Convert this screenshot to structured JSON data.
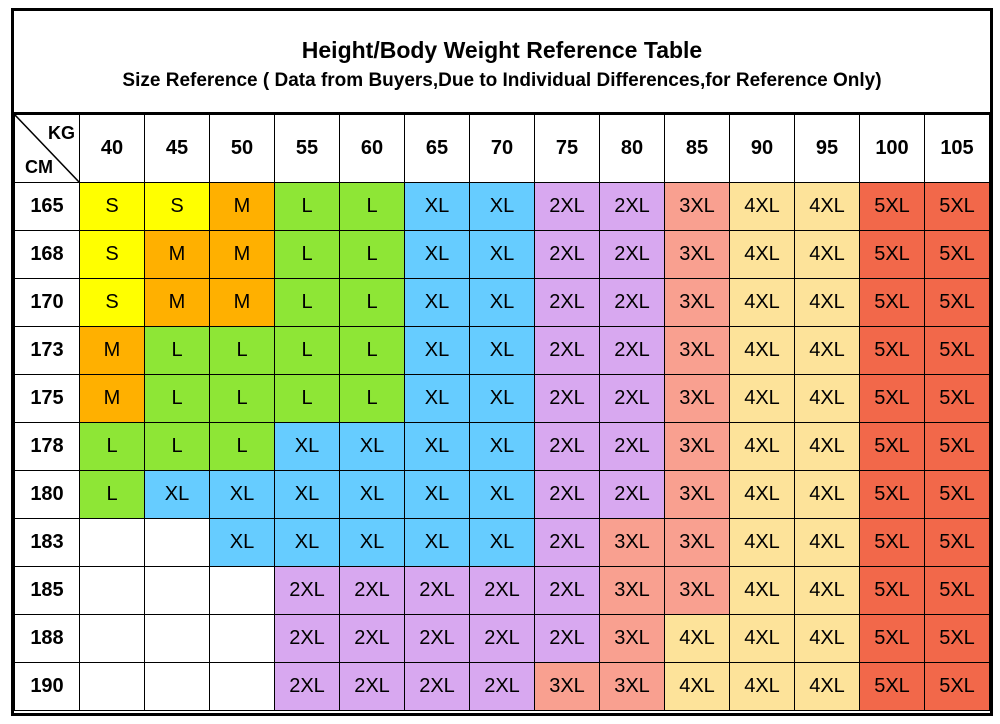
{
  "header": {
    "title": "Height/Body Weight Reference Table",
    "subtitle": "Size Reference ( Data from Buyers,Due to Individual Differences,for Reference Only)"
  },
  "table": {
    "corner_top": "KG",
    "corner_bottom": "CM",
    "columns": [
      "40",
      "45",
      "50",
      "55",
      "60",
      "65",
      "70",
      "75",
      "80",
      "85",
      "90",
      "95",
      "100",
      "105"
    ],
    "rows": [
      {
        "height": "165",
        "sizes": [
          "S",
          "S",
          "M",
          "L",
          "L",
          "XL",
          "XL",
          "2XL",
          "2XL",
          "3XL",
          "4XL",
          "4XL",
          "5XL",
          "5XL"
        ]
      },
      {
        "height": "168",
        "sizes": [
          "S",
          "M",
          "M",
          "L",
          "L",
          "XL",
          "XL",
          "2XL",
          "2XL",
          "3XL",
          "4XL",
          "4XL",
          "5XL",
          "5XL"
        ]
      },
      {
        "height": "170",
        "sizes": [
          "S",
          "M",
          "M",
          "L",
          "L",
          "XL",
          "XL",
          "2XL",
          "2XL",
          "3XL",
          "4XL",
          "4XL",
          "5XL",
          "5XL"
        ]
      },
      {
        "height": "173",
        "sizes": [
          "M",
          "L",
          "L",
          "L",
          "L",
          "XL",
          "XL",
          "2XL",
          "2XL",
          "3XL",
          "4XL",
          "4XL",
          "5XL",
          "5XL"
        ]
      },
      {
        "height": "175",
        "sizes": [
          "M",
          "L",
          "L",
          "L",
          "L",
          "XL",
          "XL",
          "2XL",
          "2XL",
          "3XL",
          "4XL",
          "4XL",
          "5XL",
          "5XL"
        ]
      },
      {
        "height": "178",
        "sizes": [
          "L",
          "L",
          "L",
          "XL",
          "XL",
          "XL",
          "XL",
          "2XL",
          "2XL",
          "3XL",
          "4XL",
          "4XL",
          "5XL",
          "5XL"
        ]
      },
      {
        "height": "180",
        "sizes": [
          "L",
          "XL",
          "XL",
          "XL",
          "XL",
          "XL",
          "XL",
          "2XL",
          "2XL",
          "3XL",
          "4XL",
          "4XL",
          "5XL",
          "5XL"
        ]
      },
      {
        "height": "183",
        "sizes": [
          null,
          null,
          "XL",
          "XL",
          "XL",
          "XL",
          "XL",
          "2XL",
          "3XL",
          "3XL",
          "4XL",
          "4XL",
          "5XL",
          "5XL"
        ]
      },
      {
        "height": "185",
        "sizes": [
          null,
          null,
          null,
          "2XL",
          "2XL",
          "2XL",
          "2XL",
          "2XL",
          "3XL",
          "3XL",
          "4XL",
          "4XL",
          "5XL",
          "5XL"
        ]
      },
      {
        "height": "188",
        "sizes": [
          null,
          null,
          null,
          "2XL",
          "2XL",
          "2XL",
          "2XL",
          "2XL",
          "3XL",
          "4XL",
          "4XL",
          "4XL",
          "5XL",
          "5XL"
        ]
      },
      {
        "height": "190",
        "sizes": [
          null,
          null,
          null,
          "2XL",
          "2XL",
          "2XL",
          "2XL",
          "3XL",
          "3XL",
          "4XL",
          "4XL",
          "4XL",
          "5XL",
          "5XL"
        ]
      }
    ],
    "palette": {
      "S": "#ffff00",
      "M": "#ffb000",
      "L": "#8ee636",
      "XL": "#66ccff",
      "2XL": "#d8a8f0",
      "3XL": "#f9a090",
      "4XL": "#fde39a",
      "5XL": "#f2684a"
    }
  }
}
